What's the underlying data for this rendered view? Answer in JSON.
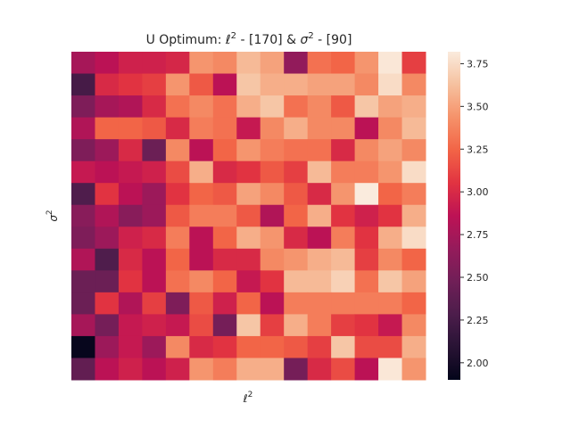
{
  "chart_data": {
    "type": "heatmap",
    "title": {
      "prefix": "U Optimum: ",
      "x_symbol": "ℓ",
      "x_sup": "2",
      "x_values": " - [170] & ",
      "y_symbol": "σ",
      "y_sup": "2",
      "y_values": " - [90]"
    },
    "xlabel": {
      "symbol": "ℓ",
      "sup": "2"
    },
    "ylabel": {
      "symbol": "σ",
      "sup": "2"
    },
    "xticks_visible": false,
    "yticks_visible": false,
    "grid": false,
    "colormap": "rocket",
    "colorbar": {
      "placement": "right",
      "vmin": 1.9,
      "vmax": 3.82,
      "ticks": [
        2.0,
        2.25,
        2.5,
        2.75,
        3.0,
        3.25,
        3.5,
        3.75
      ],
      "tick_labels": [
        "2.00",
        "2.25",
        "2.50",
        "2.75",
        "3.00",
        "3.25",
        "3.50",
        "3.75"
      ]
    },
    "n_rows": 15,
    "n_cols": 15,
    "values": [
      [
        2.75,
        2.85,
        2.95,
        2.95,
        2.98,
        3.45,
        3.4,
        3.6,
        3.5,
        2.65,
        3.3,
        3.25,
        3.45,
        3.8,
        3.1
      ],
      [
        2.25,
        3.0,
        3.05,
        3.1,
        3.45,
        3.2,
        2.85,
        3.65,
        3.55,
        3.55,
        3.5,
        3.5,
        3.4,
        3.75,
        3.4
      ],
      [
        2.55,
        2.75,
        2.8,
        3.0,
        3.3,
        3.4,
        3.3,
        3.55,
        3.65,
        3.3,
        3.4,
        3.2,
        3.65,
        3.5,
        3.55
      ],
      [
        2.8,
        3.25,
        3.25,
        3.2,
        3.0,
        3.35,
        3.3,
        2.9,
        3.4,
        3.55,
        3.4,
        3.4,
        2.85,
        3.4,
        3.6
      ],
      [
        2.55,
        2.7,
        3.0,
        2.45,
        3.4,
        2.85,
        3.25,
        3.45,
        3.35,
        3.3,
        3.3,
        3.0,
        3.4,
        3.5,
        3.4
      ],
      [
        2.9,
        2.85,
        2.9,
        2.95,
        3.15,
        3.55,
        3.0,
        3.05,
        3.2,
        3.1,
        3.6,
        3.35,
        3.35,
        3.45,
        3.75
      ],
      [
        2.3,
        3.05,
        2.85,
        2.7,
        3.05,
        3.25,
        3.2,
        3.5,
        3.4,
        3.2,
        3.0,
        3.45,
        3.85,
        3.25,
        3.35
      ],
      [
        2.6,
        2.8,
        2.6,
        2.7,
        3.2,
        3.35,
        3.35,
        3.2,
        2.8,
        3.25,
        3.55,
        3.05,
        2.95,
        3.05,
        3.55
      ],
      [
        2.55,
        2.7,
        2.95,
        3.0,
        3.35,
        2.85,
        3.25,
        3.55,
        3.45,
        3.0,
        2.85,
        3.35,
        3.05,
        3.55,
        3.75
      ],
      [
        2.8,
        2.3,
        3.0,
        2.85,
        3.25,
        2.85,
        3.0,
        3.0,
        3.4,
        3.45,
        3.55,
        3.6,
        3.1,
        3.4,
        3.25
      ],
      [
        2.45,
        2.45,
        3.05,
        2.85,
        3.3,
        3.4,
        3.25,
        2.9,
        3.05,
        3.6,
        3.6,
        3.7,
        3.3,
        3.65,
        3.5
      ],
      [
        2.45,
        3.05,
        2.8,
        3.1,
        2.55,
        3.2,
        2.95,
        3.25,
        2.85,
        3.35,
        3.35,
        3.35,
        3.35,
        3.35,
        3.25
      ],
      [
        2.75,
        2.5,
        2.9,
        2.95,
        2.9,
        3.15,
        2.5,
        3.65,
        3.1,
        3.55,
        3.35,
        3.1,
        3.05,
        2.9,
        3.4
      ],
      [
        1.92,
        2.7,
        2.9,
        2.7,
        3.4,
        3.0,
        3.05,
        3.25,
        3.25,
        3.2,
        3.1,
        3.65,
        3.15,
        3.15,
        3.55
      ],
      [
        2.4,
        2.85,
        2.95,
        2.85,
        2.95,
        3.45,
        3.35,
        3.55,
        3.55,
        2.5,
        3.0,
        3.15,
        2.85,
        3.8,
        3.45
      ]
    ]
  }
}
